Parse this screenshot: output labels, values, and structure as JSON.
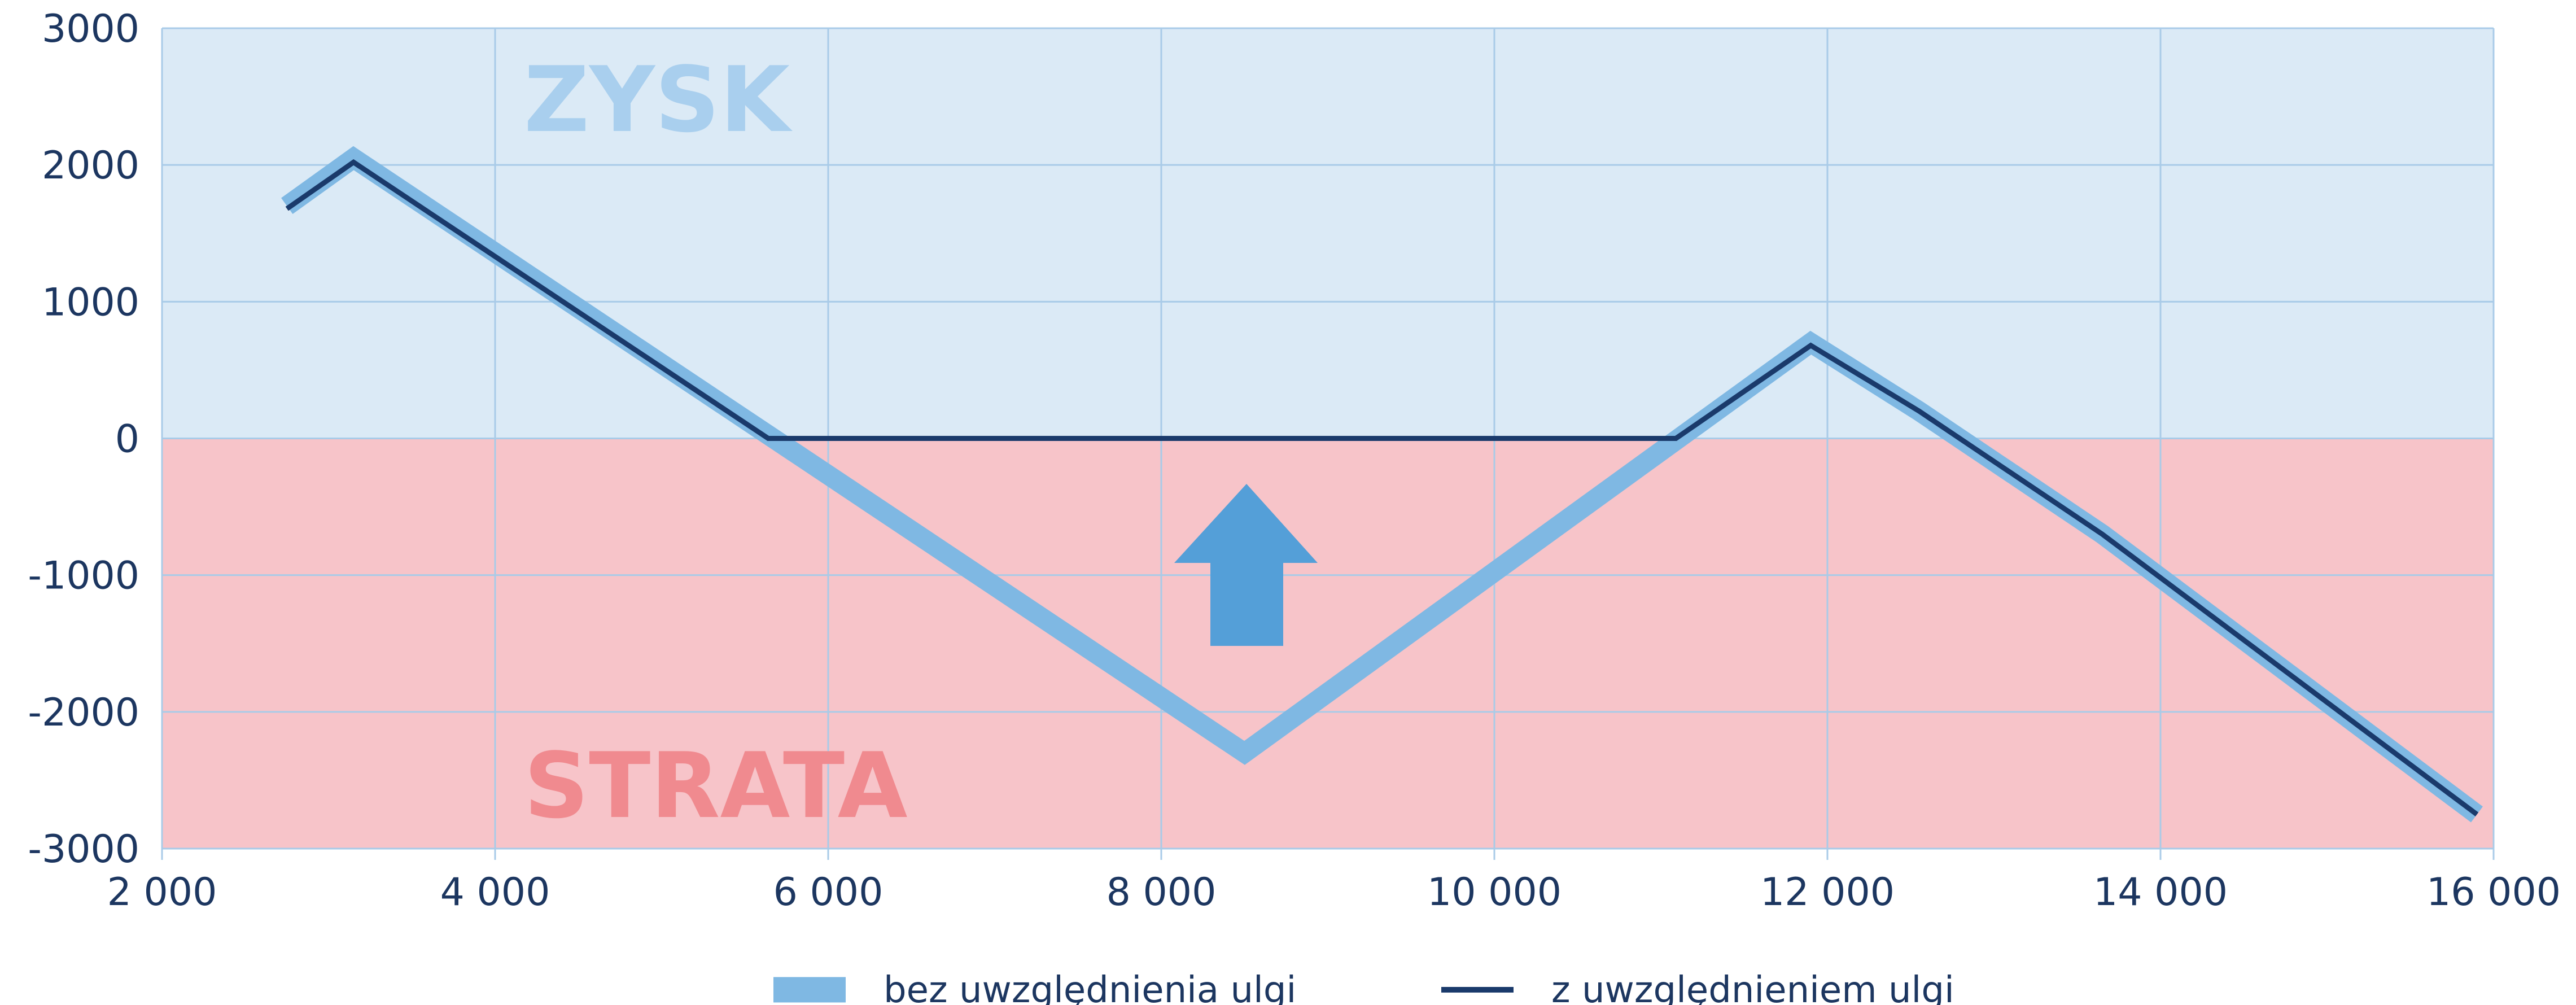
{
  "chart_data": {
    "type": "line",
    "annotations": [
      "ZYSK",
      "STRATA"
    ],
    "series": [
      {
        "name": "bez uwzględnienia ulgi",
        "color": "#7fb8e3",
        "x": [
          2750,
          3150,
          8500,
          11900,
          12550,
          13650,
          15900
        ],
        "values": [
          1700,
          2050,
          -2300,
          700,
          200,
          -700,
          -2750
        ]
      },
      {
        "name": "z uwzględnieniem ulgi",
        "color": "#1a3a6b",
        "x": [
          2750,
          3150,
          5640,
          11090,
          11900,
          12550,
          13650,
          15900
        ],
        "values": [
          1680,
          2020,
          0,
          0,
          680,
          200,
          -700,
          -2750
        ]
      }
    ],
    "xlim": [
      2000,
      16000
    ],
    "xticks": [
      {
        "value": 2000,
        "label": "2 000"
      },
      {
        "value": 4000,
        "label": "4 000"
      },
      {
        "value": 6000,
        "label": "6 000"
      },
      {
        "value": 8000,
        "label": "8 000"
      },
      {
        "value": 10000,
        "label": "10 000"
      },
      {
        "value": 12000,
        "label": "12 000"
      },
      {
        "value": 14000,
        "label": "14 000"
      },
      {
        "value": 16000,
        "label": "16 000"
      }
    ],
    "ylim": [
      -3000,
      3000
    ],
    "yticks": [
      3000,
      2000,
      1000,
      0,
      -1000,
      -2000,
      -3000
    ],
    "grid": true
  }
}
